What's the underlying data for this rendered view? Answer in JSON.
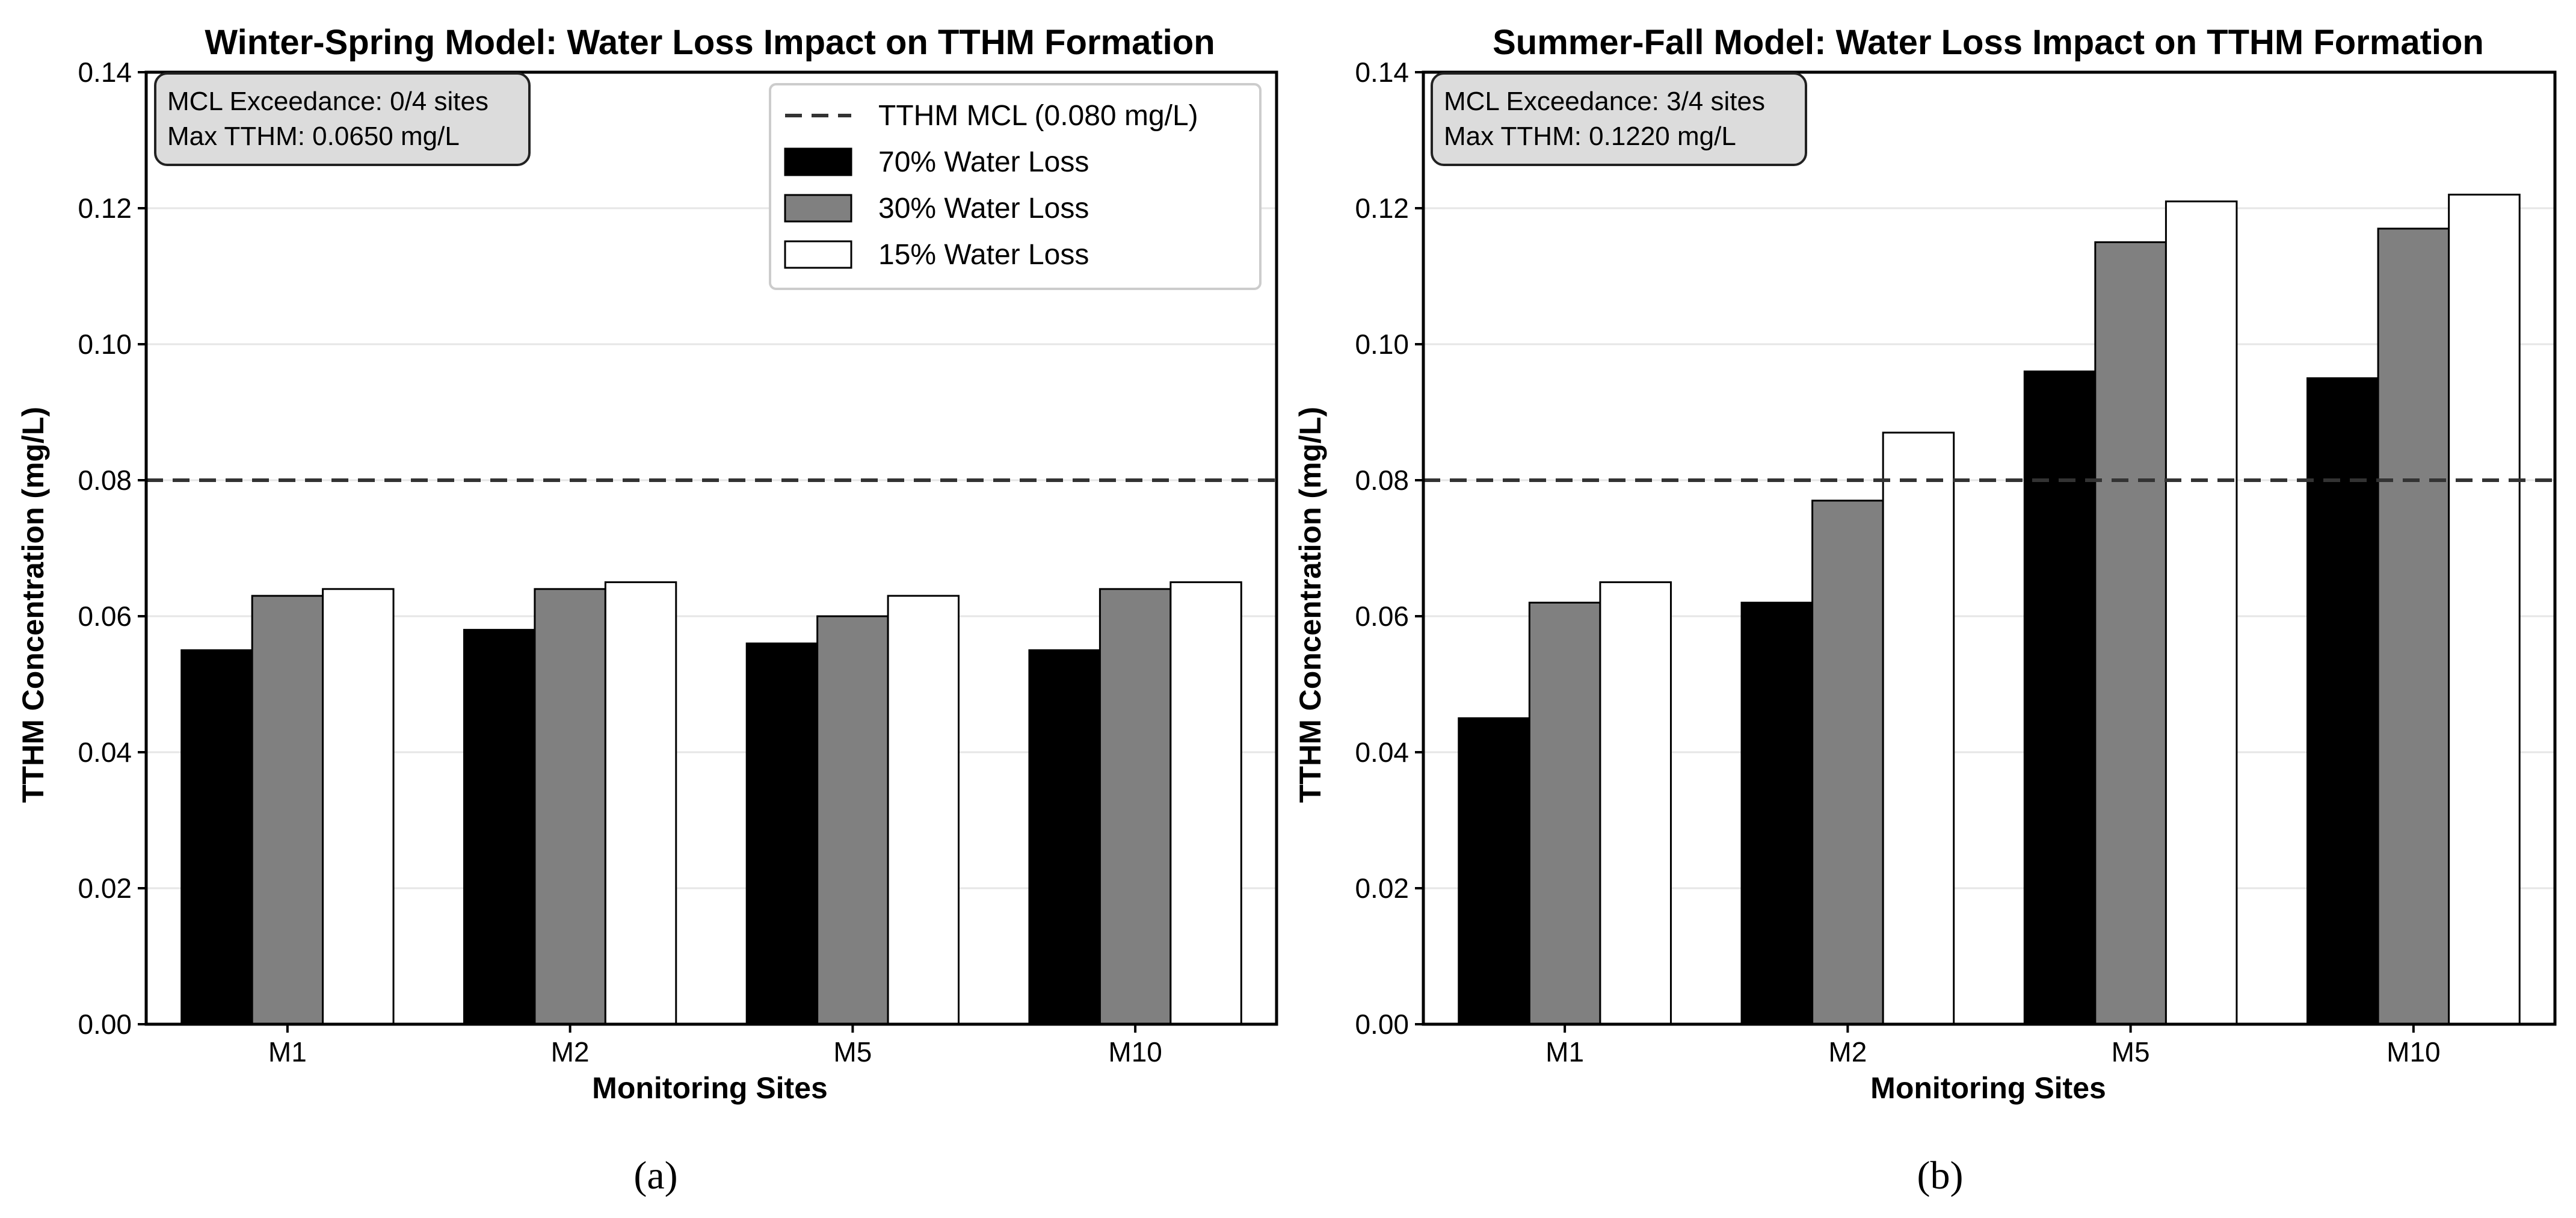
{
  "chart_data": [
    {
      "type": "bar",
      "title": "Winter-Spring Model: Water Loss Impact on TTHM Formation",
      "xlabel": "Monitoring Sites",
      "ylabel": "TTHM Concentration (mg/L)",
      "ylim": [
        0,
        0.14
      ],
      "yticks": [
        "0.00",
        "0.02",
        "0.04",
        "0.06",
        "0.08",
        "0.10",
        "0.12",
        "0.14"
      ],
      "categories": [
        "M1",
        "M2",
        "M5",
        "M10"
      ],
      "series": [
        {
          "name": "70% Water Loss",
          "color": "#000000",
          "values": [
            0.055,
            0.058,
            0.056,
            0.055
          ]
        },
        {
          "name": "30% Water Loss",
          "color": "#808080",
          "values": [
            0.063,
            0.064,
            0.06,
            0.064
          ]
        },
        {
          "name": "15% Water Loss",
          "color": "#ffffff",
          "values": [
            0.064,
            0.065,
            0.063,
            0.065
          ]
        }
      ],
      "reference_line": {
        "label": "TTHM MCL (0.080 mg/L)",
        "value": 0.08
      },
      "annotation": [
        "MCL Exceedance: 0/4 sites",
        "Max TTHM: 0.0650 mg/L"
      ],
      "legend_position": "top-right",
      "grid": "horizontal",
      "panel_label": "(a)"
    },
    {
      "type": "bar",
      "title": "Summer-Fall Model: Water Loss Impact on TTHM Formation",
      "xlabel": "Monitoring Sites",
      "ylabel": "TTHM Concentration (mg/L)",
      "ylim": [
        0,
        0.14
      ],
      "yticks": [
        "0.00",
        "0.02",
        "0.04",
        "0.06",
        "0.08",
        "0.10",
        "0.12",
        "0.14"
      ],
      "categories": [
        "M1",
        "M2",
        "M5",
        "M10"
      ],
      "series": [
        {
          "name": "70% Water Loss",
          "color": "#000000",
          "values": [
            0.045,
            0.062,
            0.096,
            0.095
          ]
        },
        {
          "name": "30% Water Loss",
          "color": "#808080",
          "values": [
            0.062,
            0.077,
            0.115,
            0.117
          ]
        },
        {
          "name": "15% Water Loss",
          "color": "#ffffff",
          "values": [
            0.065,
            0.087,
            0.121,
            0.122
          ]
        }
      ],
      "reference_line": {
        "label": "TTHM MCL (0.080 mg/L)",
        "value": 0.08
      },
      "annotation": [
        "MCL Exceedance: 3/4 sites",
        "Max TTHM: 0.1220 mg/L"
      ],
      "legend_position": "none",
      "grid": "horizontal",
      "panel_label": "(b)"
    }
  ]
}
